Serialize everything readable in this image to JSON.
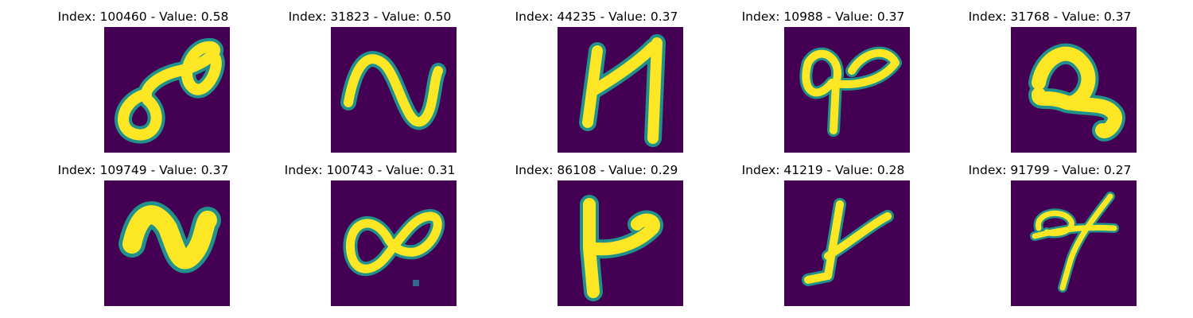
{
  "colors": {
    "background": "#440154",
    "stroke_core": "#fde725",
    "stroke_edge": "#35b779",
    "stroke_halo": "#21918c"
  },
  "panels": [
    {
      "title": "Index: 100460 - Value: 0.58",
      "glyph": "double-loop"
    },
    {
      "title": "Index: 31823 - Value: 0.50",
      "glyph": "n-shape"
    },
    {
      "title": "Index: 44235 - Value: 0.37",
      "glyph": "h-shape"
    },
    {
      "title": "Index: 10988 - Value: 0.37",
      "glyph": "loop-pair"
    },
    {
      "title": "Index: 31768 - Value: 0.37",
      "glyph": "blob-loop"
    },
    {
      "title": "Index: 109749 - Value: 0.37",
      "glyph": "thick-n-shape"
    },
    {
      "title": "Index: 100743 - Value: 0.31",
      "glyph": "infinity"
    },
    {
      "title": "Index: 86108 - Value: 0.29",
      "glyph": "y-shape"
    },
    {
      "title": "Index: 41219 - Value: 0.28",
      "glyph": "y-shape"
    },
    {
      "title": "Index: 91799 - Value: 0.27",
      "glyph": "scribble"
    }
  ]
}
